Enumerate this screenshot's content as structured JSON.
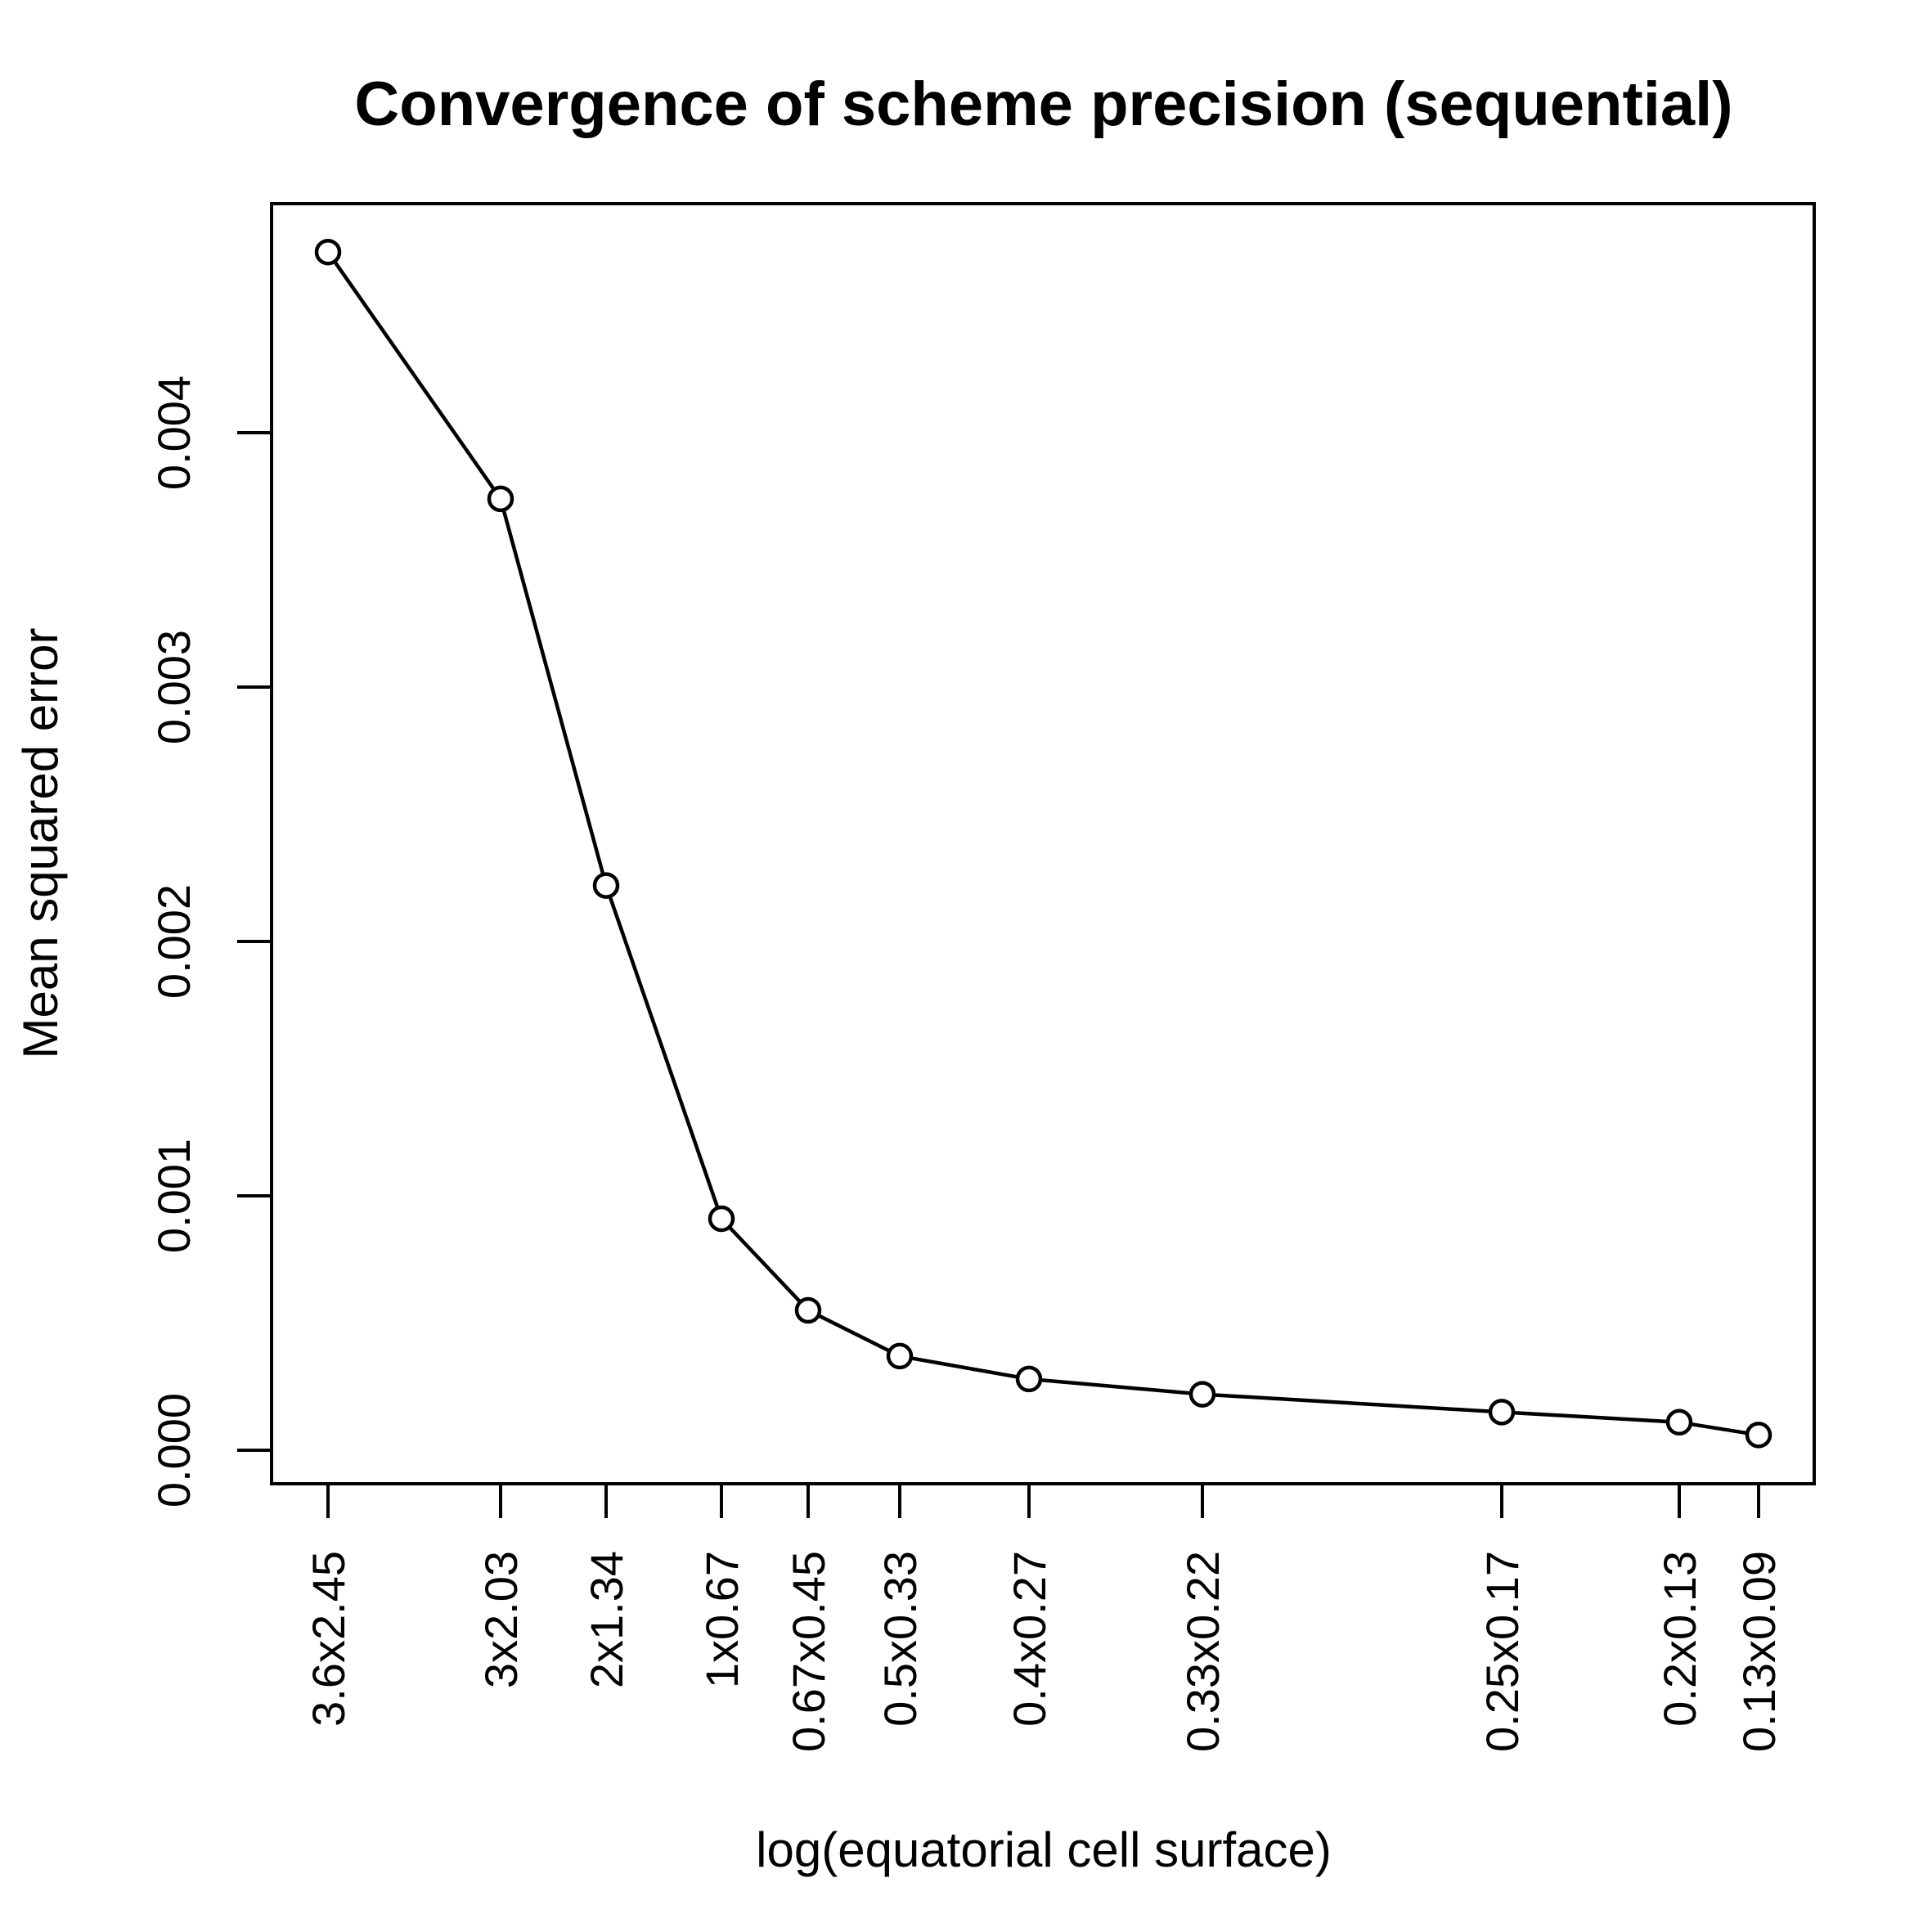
{
  "chart_data": {
    "type": "line",
    "title": "Convergence of scheme precision (sequential)",
    "xlabel": "log(equatorial cell surface)",
    "ylabel": "Mean squared error",
    "x_scale": "log",
    "x_tick_labels": [
      "3.6x2.45",
      "3x2.03",
      "2x1.34",
      "1x0.67",
      "0.67x0.45",
      "0.5x0.33",
      "0.4x0.27",
      "0.33x0.22",
      "0.25x0.17",
      "0.2x0.13",
      "0.13x0.09"
    ],
    "y_ticks": [
      0.0,
      0.001,
      0.002,
      0.003,
      0.004
    ],
    "y_tick_labels": [
      "0.000",
      "0.001",
      "0.002",
      "0.003",
      "0.004"
    ],
    "ylim": [
      0.0,
      0.0048
    ],
    "series": [
      {
        "markers": "open-circle",
        "line": "solid",
        "color": "#000000",
        "values": [
          0.00471,
          0.00374,
          0.00222,
          0.00091,
          0.00055,
          0.00037,
          0.00028,
          0.00022,
          0.00015,
          0.00011,
          6e-05
        ]
      }
    ],
    "grid": false,
    "legend": "none"
  }
}
